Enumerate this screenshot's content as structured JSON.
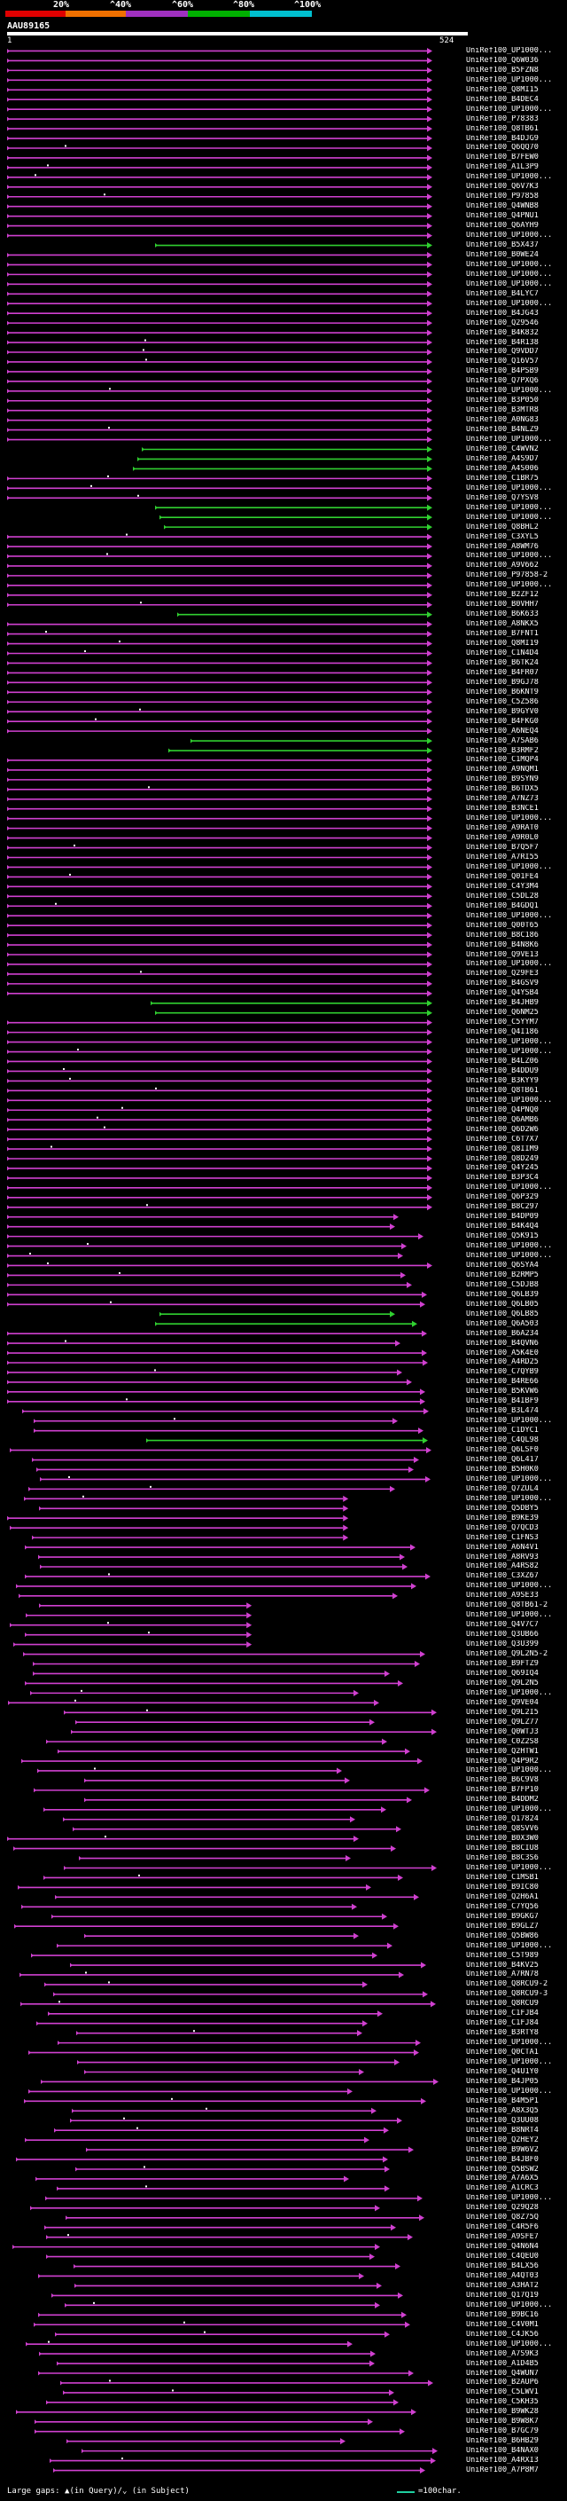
{
  "header": {
    "query_id": "AAU89165",
    "query_start": "1",
    "query_end": "524",
    "colorbar": [
      {
        "label": "20%",
        "color": "#e00000"
      },
      {
        "label": "^40%",
        "color": "#f07000"
      },
      {
        "label": "^60%",
        "color": "#a030c0"
      },
      {
        "label": "^80%",
        "color": "#00b000"
      },
      {
        "label": "^100%",
        "color": "#00c0d0"
      }
    ]
  },
  "colors": {
    "magenta": "#d040d0",
    "green": "#30d030",
    "background": "#000000",
    "scale_line": "#1fd0a0"
  },
  "hits": [
    "UniRef100_UP1000...",
    "UniRef100_Q6W036",
    "UniRef100_B5FZN8",
    "UniRef100_UP1000...",
    "UniRef100_Q8MI15",
    "UniRef100_B4DEC4",
    "UniRef100_UP1000...",
    "UniRef100_P78383",
    "UniRef100_Q8TB61",
    "UniRef100_B4DJG9",
    "UniRef100_Q6QQ70",
    "UniRef100_B7FEW0",
    "UniRef100_A1L3P9",
    "UniRef100_UP1000...",
    "UniRef100_Q6V7K3",
    "UniRef100_P97858",
    "UniRef100_Q4WNB8",
    "UniRef100_Q4PNU1",
    "UniRef100_Q6AYH9",
    "UniRef100_UP1000...",
    "UniRef100_B5X437",
    "UniRef100_B0WE24",
    "UniRef100_UP1000...",
    "UniRef100_UP1000...",
    "UniRef100_UP1000...",
    "UniRef100_B4LYC7",
    "UniRef100_UP1000...",
    "UniRef100_B4JG43",
    "UniRef100_Q29546",
    "UniRef100_B4K832",
    "UniRef100_B4R138",
    "UniRef100_Q9VDD7",
    "UniRef100_Q16V57",
    "UniRef100_B4PSB9",
    "UniRef100_Q7PXQ6",
    "UniRef100_UP1000...",
    "UniRef100_B3P050",
    "UniRef100_B3MTR8",
    "UniRef100_A0NG83",
    "UniRef100_B4NLZ9",
    "UniRef100_UP1000...",
    "UniRef100_C4WVN2",
    "UniRef100_A4S9D7",
    "UniRef100_A4S006",
    "UniRef100_C1BR75",
    "UniRef100_UP1000...",
    "UniRef100_Q7YSV8",
    "UniRef100_UP1000...",
    "UniRef100_UP1000...",
    "UniRef100_Q8BHL2",
    "UniRef100_C3XYL5",
    "UniRef100_A8WM76",
    "UniRef100_UP1000...",
    "UniRef100_A9V662",
    "UniRef100_P97858-2",
    "UniRef100_UP1000...",
    "UniRef100_B2ZF12",
    "UniRef100_B0VHH7",
    "UniRef100_B6K633",
    "UniRef100_A8NKX5",
    "UniRef100_B7FNT1",
    "UniRef100_Q8MI19",
    "UniRef100_C1N4D4",
    "UniRef100_B6TK24",
    "UniRef100_B4FR07",
    "UniRef100_B9GJ78",
    "UniRef100_B6KNT9",
    "UniRef100_C5Z586",
    "UniRef100_B9GYV0",
    "UniRef100_B4FKG0",
    "UniRef100_A6NEQ4",
    "UniRef100_A7SAB6",
    "UniRef100_B3RMF2",
    "UniRef100_C1MQP4",
    "UniRef100_A9NQM1",
    "UniRef100_B9SYN9",
    "UniRef100_B6TDX5",
    "UniRef100_A7NZ73",
    "UniRef100_B3NCE1",
    "UniRef100_UP1000...",
    "UniRef100_A9RAT0",
    "UniRef100_A9R0L0",
    "UniRef100_B7Q5F7",
    "UniRef100_A7RI55",
    "UniRef100_UP1000...",
    "UniRef100_Q01FE4",
    "UniRef100_C4Y3M4",
    "UniRef100_C5DL28",
    "UniRef100_B4GDQ1",
    "UniRef100_UP1000...",
    "UniRef100_Q00T65",
    "UniRef100_B8C186",
    "UniRef100_B4N8K6",
    "UniRef100_Q9VE13",
    "UniRef100_UP1000...",
    "UniRef100_Q29FE3",
    "UniRef100_B4GSV9",
    "UniRef100_Q4YSB4",
    "UniRef100_B4JHB9",
    "UniRef100_Q6NM25",
    "UniRef100_C5YYM7",
    "UniRef100_Q4I186",
    "UniRef100_UP1000...",
    "UniRef100_UP1000...",
    "UniRef100_B4LZ06",
    "UniRef100_B4DDU9",
    "UniRef100_B3KYY9",
    "UniRef100_Q8TB61",
    "UniRef100_UP1000...",
    "UniRef100_Q4PNQ0",
    "UniRef100_Q6AMB6",
    "UniRef100_Q6D2W6",
    "UniRef100_C6T7X7",
    "UniRef100_Q8IIM9",
    "UniRef100_Q8D249",
    "UniRef100_Q4Y245",
    "UniRef100_B3P3C4",
    "UniRef100_UP1000...",
    "UniRef100_Q6P329",
    "UniRef100_B8C297",
    "UniRef100_B4DP09",
    "UniRef100_B4K4Q4",
    "UniRef100_Q5K915",
    "UniRef100_UP1000...",
    "UniRef100_UP1000...",
    "UniRef100_Q6SYA4",
    "UniRef100_B2RMP5",
    "UniRef100_C5DJB8",
    "UniRef100_Q6LB39",
    "UniRef100_Q6LB05",
    "UniRef100_Q6LB85",
    "UniRef100_Q6A503",
    "UniRef100_B6A234",
    "UniRef100_B4QVN6",
    "UniRef100_A5K4E0",
    "UniRef100_A4RD25",
    "UniRef100_C7QYB9",
    "UniRef100_B4RE66",
    "UniRef100_B5KVW6",
    "UniRef100_B4IBF9",
    "UniRef100_B3L474",
    "UniRef100_UP1000...",
    "UniRef100_C1DYC1",
    "UniRef100_C4QL98",
    "UniRef100_Q6LSF0",
    "UniRef100_Q6L417",
    "UniRef100_B5H0K0",
    "UniRef100_UP1000...",
    "UniRef100_Q7ZUL4",
    "UniRef100_UP1000...",
    "UniRef100_Q5DBY5",
    "UniRef100_B9KE39",
    "UniRef100_Q7QCD3",
    "UniRef100_C1FNS3",
    "UniRef100_A6N4V1",
    "UniRef100_A8RV93",
    "UniRef100_A4RS82",
    "UniRef100_C3XZ67",
    "UniRef100_UP1000...",
    "UniRef100_A9SE33",
    "UniRef100_Q8TB61-2",
    "UniRef100_UP1000...",
    "UniRef100_Q4V7C7",
    "UniRef100_Q3UB66",
    "UniRef100_Q3U399",
    "UniRef100_Q9L2N5-2",
    "UniRef100_B9FTZ9",
    "UniRef100_Q69IQ4",
    "UniRef100_Q9L2N5",
    "UniRef100_UP1000...",
    "UniRef100_Q9VE04",
    "UniRef100_Q9L2I5",
    "UniRef100_Q9LZ77",
    "UniRef100_Q0WTJ3",
    "UniRef100_C0Z2S8",
    "UniRef100_Q2HTW1",
    "UniRef100_Q4P9R2",
    "UniRef100_UP1000...",
    "UniRef100_B6C9V8",
    "UniRef100_B7FP10",
    "UniRef100_B4DDM2",
    "UniRef100_UP1000...",
    "UniRef100_Q17824",
    "UniRef100_Q8SVV6",
    "UniRef100_B0X3W0",
    "UniRef100_B8CIU8",
    "UniRef100_B8C3S6",
    "UniRef100_UP1000...",
    "UniRef100_C1MSB1",
    "UniRef100_B9IC80",
    "UniRef100_Q2H6A1",
    "UniRef100_C7YQ56",
    "UniRef100_B9GKG7",
    "UniRef100_B9GLZ7",
    "UniRef100_Q5BW86",
    "UniRef100_UP1000...",
    "UniRef100_C5T989",
    "UniRef100_B4KV25",
    "UniRef100_A7RN78",
    "UniRef100_Q8RCU9-2",
    "UniRef100_Q8RCU9-3",
    "UniRef100_Q8RCU9",
    "UniRef100_C1FJB4",
    "UniRef100_C1FJ84",
    "UniRef100_B3RTY8",
    "UniRef100_UP1000...",
    "UniRef100_Q0CTA1",
    "UniRef100_UP1000...",
    "UniRef100_Q4U1Y0",
    "UniRef100_B4JP05",
    "UniRef100_UP1000...",
    "UniRef100_B4M5P1",
    "UniRef100_A8X3Q5",
    "UniRef100_Q3UU08",
    "UniRef100_B8NRT4",
    "UniRef100_Q2HEY2",
    "UniRef100_B9W6V2",
    "UniRef100_B4JBF0",
    "UniRef100_Q5BSW2",
    "UniRef100_A7A6X5",
    "UniRef100_A1CRC3",
    "UniRef100_UP1000...",
    "UniRef100_Q29Q28",
    "UniRef100_Q8Z75Q",
    "UniRef100_C4R5F6",
    "UniRef100_A9SFE7",
    "UniRef100_Q4N6N4",
    "UniRef100_C4QEU0",
    "UniRef100_B4LX56",
    "UniRef100_A4QT03",
    "UniRef100_A3HAT2",
    "UniRef100_Q17Q19",
    "UniRef100_UP1000...",
    "UniRef100_B9BC16",
    "UniRef100_C4V0M1",
    "UniRef100_C4JK56",
    "UniRef100_UP1000...",
    "UniRef100_A7S9K3",
    "UniRef100_A1D4B5",
    "UniRef100_Q4WUN7",
    "UniRef100_B2AUP6",
    "UniRef100_C5LWV1",
    "UniRef100_C5KH35",
    "UniRef100_B9WK28",
    "UniRef100_B9W8K7",
    "UniRef100_B7GC79",
    "UniRef100_B6HB29",
    "UniRef100_B4NAX0",
    "UniRef100_A4RXI3",
    "UniRef100_A7P8M7"
  ],
  "legend": {
    "gap_text": "Large gaps: ▲(in Query)/⌄ (in Subject)",
    "scale_text": "=100char."
  }
}
